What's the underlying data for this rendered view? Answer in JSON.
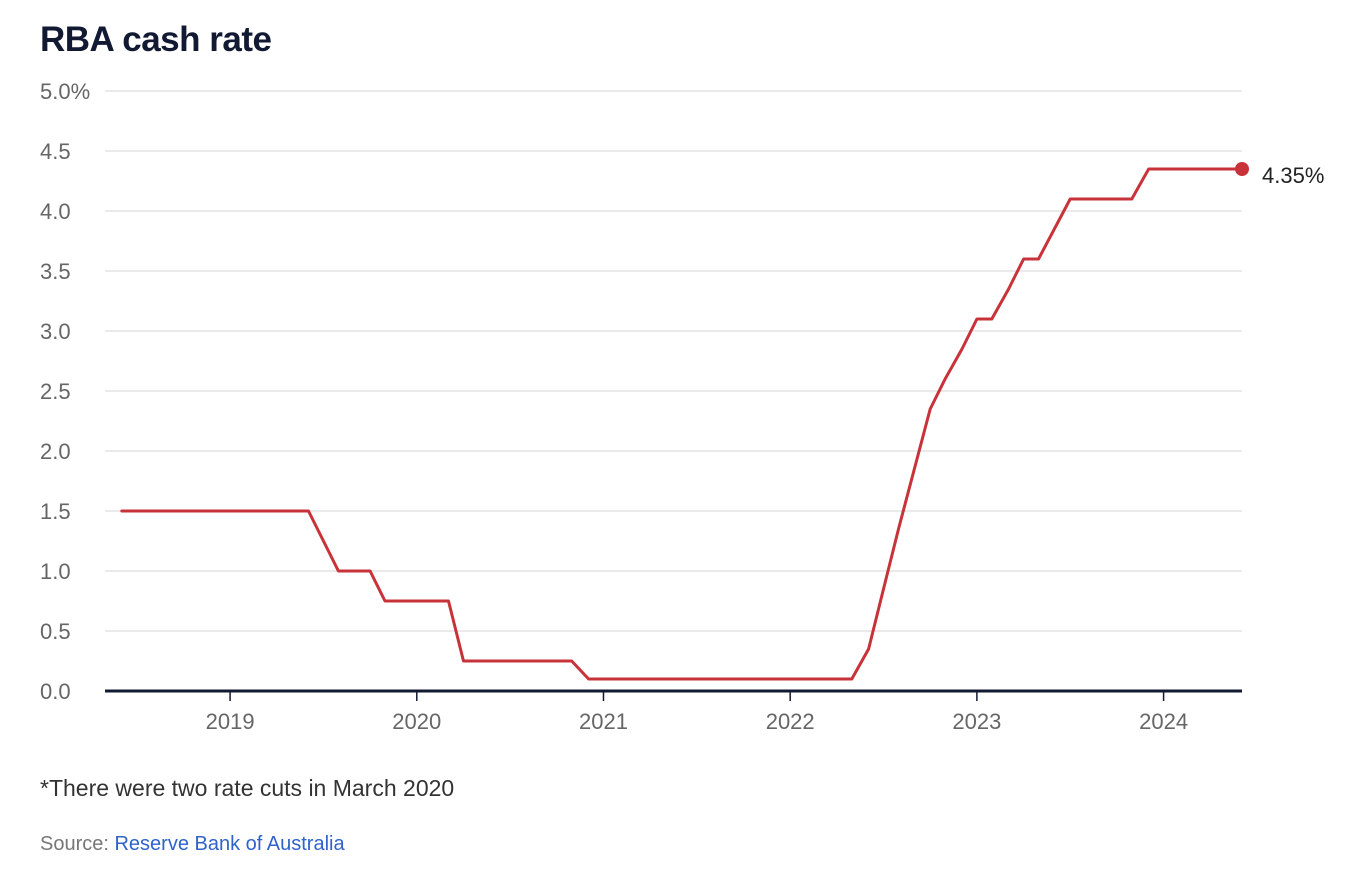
{
  "chart_data": {
    "type": "line",
    "title": "RBA cash rate",
    "xlabel": "",
    "ylabel": "",
    "x_range": [
      2018.33,
      2024.42
    ],
    "ylim": [
      0,
      5.0
    ],
    "y_ticks": [
      {
        "value": 0.0,
        "label": "0.0"
      },
      {
        "value": 0.5,
        "label": "0.5"
      },
      {
        "value": 1.0,
        "label": "1.0"
      },
      {
        "value": 1.5,
        "label": "1.5"
      },
      {
        "value": 2.0,
        "label": "2.0"
      },
      {
        "value": 2.5,
        "label": "2.5"
      },
      {
        "value": 3.0,
        "label": "3.0"
      },
      {
        "value": 3.5,
        "label": "3.5"
      },
      {
        "value": 4.0,
        "label": "4.0"
      },
      {
        "value": 4.5,
        "label": "4.5"
      },
      {
        "value": 5.0,
        "label": "5.0%"
      }
    ],
    "x_ticks": [
      {
        "value": 2019,
        "label": "2019"
      },
      {
        "value": 2020,
        "label": "2020"
      },
      {
        "value": 2021,
        "label": "2021"
      },
      {
        "value": 2022,
        "label": "2022"
      },
      {
        "value": 2023,
        "label": "2023"
      },
      {
        "value": 2024,
        "label": "2024"
      }
    ],
    "grid": true,
    "line_color": "#c8333a",
    "series": [
      {
        "x": [
          2018.42,
          2019.42,
          2019.58,
          2019.75,
          2019.83,
          2020.17,
          2020.25,
          2020.83,
          2020.92,
          2022.33,
          2022.42,
          2022.5,
          2022.58,
          2022.75,
          2022.83,
          2022.92,
          2023.0,
          2023.08,
          2023.17,
          2023.25,
          2023.33,
          2023.5,
          2023.58,
          2023.67,
          2023.83,
          2023.92,
          2024.0,
          2024.08,
          2024.17,
          2024.25,
          2024.42
        ],
        "values": [
          1.5,
          1.5,
          1.0,
          1.0,
          0.75,
          0.75,
          0.25,
          0.25,
          0.1,
          0.1,
          0.35,
          0.85,
          1.35,
          2.35,
          2.6,
          2.85,
          3.1,
          3.1,
          3.35,
          3.6,
          3.6,
          4.1,
          4.1,
          4.1,
          4.1,
          4.35,
          4.35,
          4.35,
          4.35,
          4.35,
          4.35
        ]
      }
    ],
    "end_label": "4.35%"
  },
  "footnote": "*There were two rate cuts in March 2020",
  "source_prefix": "Source: ",
  "source_link": "Reserve Bank of Australia"
}
